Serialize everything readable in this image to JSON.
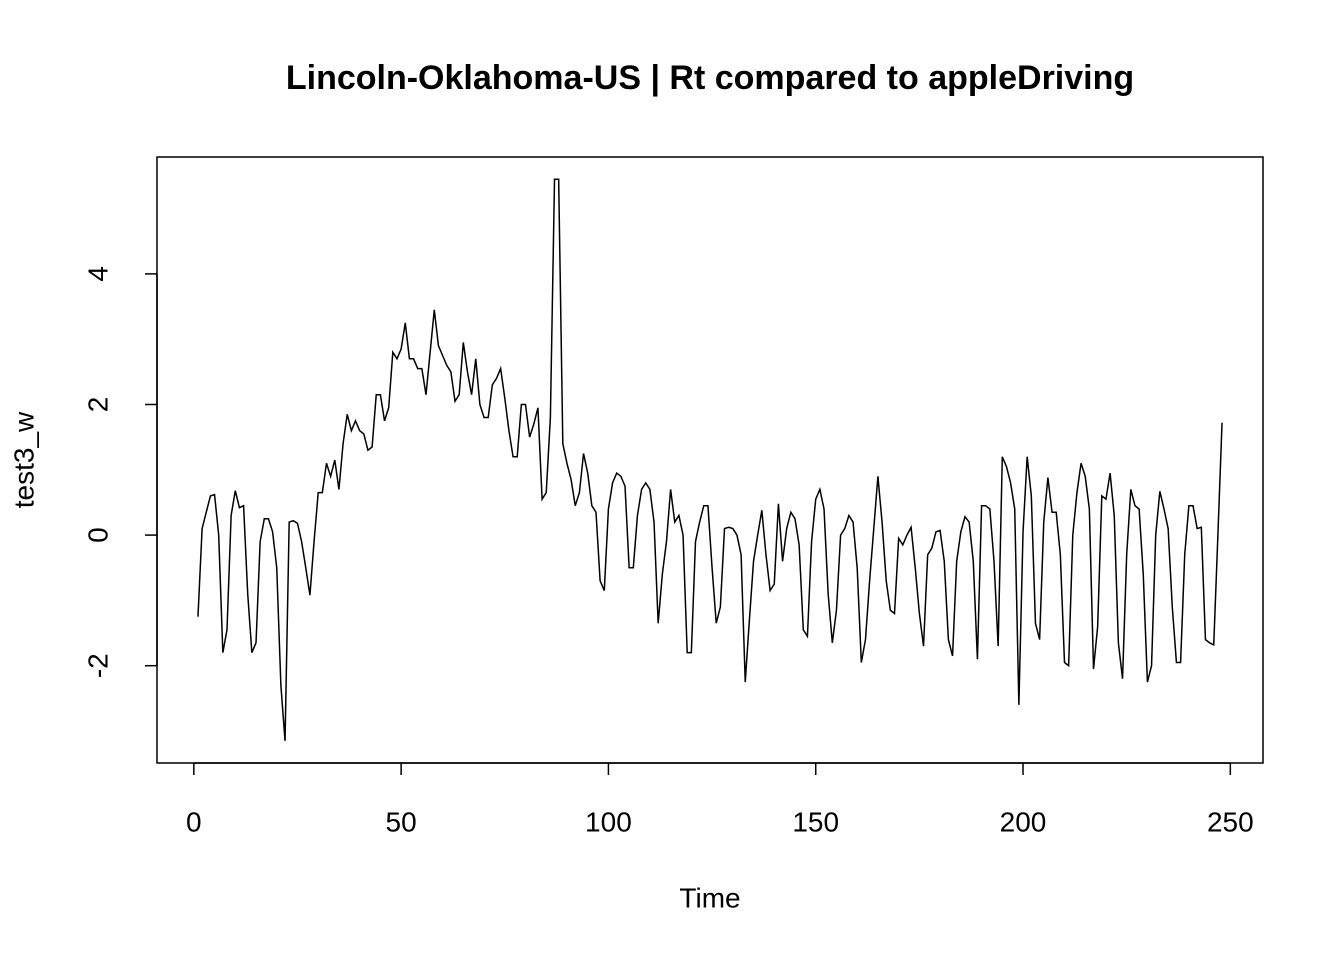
{
  "chart_data": {
    "type": "line",
    "title": "Lincoln-Oklahoma-US | Rt compared to appleDriving",
    "x_label": "Time",
    "y_label": "test3_w",
    "color": "#000000",
    "x": [
      1,
      2,
      3,
      4,
      5,
      6,
      7,
      8,
      9,
      10,
      11,
      12,
      13,
      14,
      15,
      16,
      17,
      18,
      19,
      20,
      21,
      22,
      23,
      24,
      25,
      26,
      27,
      28,
      29,
      30,
      31,
      32,
      33,
      34,
      35,
      36,
      37,
      38,
      39,
      40,
      41,
      42,
      43,
      44,
      45,
      46,
      47,
      48,
      49,
      50,
      51,
      52,
      53,
      54,
      55,
      56,
      57,
      58,
      59,
      60,
      61,
      62,
      63,
      64,
      65,
      66,
      67,
      68,
      69,
      70,
      71,
      72,
      73,
      74,
      75,
      76,
      77,
      78,
      79,
      80,
      81,
      82,
      83,
      84,
      85,
      86,
      87,
      88,
      89,
      90,
      91,
      92,
      93,
      94,
      95,
      96,
      97,
      98,
      99,
      100,
      101,
      102,
      103,
      104,
      105,
      106,
      107,
      108,
      109,
      110,
      111,
      112,
      113,
      114,
      115,
      116,
      117,
      118,
      119,
      120,
      121,
      122,
      123,
      124,
      125,
      126,
      127,
      128,
      129,
      130,
      131,
      132,
      133,
      134,
      135,
      136,
      137,
      138,
      139,
      140,
      141,
      142,
      143,
      144,
      145,
      146,
      147,
      148,
      149,
      150,
      151,
      152,
      153,
      154,
      155,
      156,
      157,
      158,
      159,
      160,
      161,
      162,
      163,
      164,
      165,
      166,
      167,
      168,
      169,
      170,
      171,
      172,
      173,
      174,
      175,
      176,
      177,
      178,
      179,
      180,
      181,
      182,
      183,
      184,
      185,
      186,
      187,
      188,
      189,
      190,
      191,
      192,
      193,
      194,
      195,
      196,
      197,
      198,
      199,
      200,
      201,
      202,
      203,
      204,
      205,
      206,
      207,
      208,
      209,
      210,
      211,
      212,
      213,
      214,
      215,
      216,
      217,
      218,
      219,
      220,
      221,
      222,
      223,
      224,
      225,
      226,
      227,
      228,
      229,
      230,
      231,
      232,
      233,
      234,
      235,
      236,
      237,
      238,
      239,
      240,
      241,
      242,
      243,
      244,
      245,
      246,
      247,
      248
    ],
    "values": [
      -1.25,
      0.1,
      0.35,
      0.6,
      0.62,
      0.0,
      -1.8,
      -1.45,
      0.3,
      0.68,
      0.42,
      0.45,
      -0.9,
      -1.8,
      -1.65,
      -0.1,
      0.25,
      0.25,
      0.05,
      -0.5,
      -2.3,
      -3.15,
      0.2,
      0.22,
      0.18,
      -0.1,
      -0.5,
      -0.92,
      -0.1,
      0.65,
      0.65,
      1.1,
      0.9,
      1.15,
      0.7,
      1.4,
      1.85,
      1.6,
      1.75,
      1.6,
      1.55,
      1.3,
      1.35,
      2.15,
      2.15,
      1.75,
      1.95,
      2.8,
      2.7,
      2.85,
      3.25,
      2.7,
      2.7,
      2.55,
      2.55,
      2.15,
      2.8,
      3.45,
      2.9,
      2.75,
      2.6,
      2.5,
      2.05,
      2.15,
      2.95,
      2.5,
      2.15,
      2.7,
      2.0,
      1.8,
      1.8,
      2.3,
      2.4,
      2.55,
      2.1,
      1.6,
      1.2,
      1.2,
      2.0,
      2.0,
      1.5,
      1.7,
      1.95,
      0.55,
      0.65,
      1.8,
      5.45,
      5.45,
      1.4,
      1.1,
      0.85,
      0.45,
      0.65,
      1.25,
      0.95,
      0.45,
      0.35,
      -0.7,
      -0.85,
      0.4,
      0.8,
      0.95,
      0.9,
      0.75,
      -0.5,
      -0.5,
      0.3,
      0.7,
      0.8,
      0.7,
      0.2,
      -1.35,
      -0.6,
      -0.1,
      0.7,
      0.2,
      0.3,
      0.0,
      -1.8,
      -1.8,
      -0.1,
      0.2,
      0.45,
      0.45,
      -0.5,
      -1.35,
      -1.1,
      0.1,
      0.12,
      0.1,
      0.0,
      -0.3,
      -2.25,
      -1.3,
      -0.4,
      0.0,
      0.38,
      -0.3,
      -0.85,
      -0.75,
      0.48,
      -0.4,
      0.1,
      0.35,
      0.25,
      -0.15,
      -1.45,
      -1.55,
      -0.1,
      0.55,
      0.7,
      0.4,
      -0.9,
      -1.65,
      -1.15,
      0.0,
      0.1,
      0.3,
      0.2,
      -0.5,
      -1.95,
      -1.6,
      -0.7,
      0.1,
      0.9,
      0.2,
      -0.7,
      -1.15,
      -1.2,
      -0.05,
      -0.15,
      0.0,
      0.12,
      -0.5,
      -1.2,
      -1.7,
      -0.3,
      -0.2,
      0.05,
      0.07,
      -0.4,
      -1.6,
      -1.85,
      -0.4,
      0.05,
      0.28,
      0.2,
      -0.4,
      -1.9,
      0.45,
      0.45,
      0.4,
      -0.4,
      -1.7,
      1.2,
      1.05,
      0.8,
      0.4,
      -2.6,
      0.05,
      1.2,
      0.6,
      -1.35,
      -1.6,
      0.2,
      0.88,
      0.35,
      0.35,
      -0.3,
      -1.95,
      -2.0,
      0.0,
      0.65,
      1.1,
      0.9,
      0.4,
      -2.05,
      -1.4,
      0.6,
      0.55,
      0.95,
      0.3,
      -1.65,
      -2.2,
      -0.3,
      0.7,
      0.45,
      0.4,
      -0.6,
      -2.25,
      -2.0,
      0.0,
      0.67,
      0.4,
      0.1,
      -1.1,
      -1.95,
      -1.95,
      -0.3,
      0.45,
      0.45,
      0.1,
      0.12,
      -1.6,
      -1.65,
      -1.68,
      0.0,
      1.72
    ],
    "xlim": [
      -8.88,
      257.88
    ],
    "ylim": [
      -3.49,
      5.79
    ],
    "xticks": [
      0,
      50,
      100,
      150,
      200,
      250
    ],
    "yticks": [
      -2,
      0,
      2,
      4
    ]
  }
}
